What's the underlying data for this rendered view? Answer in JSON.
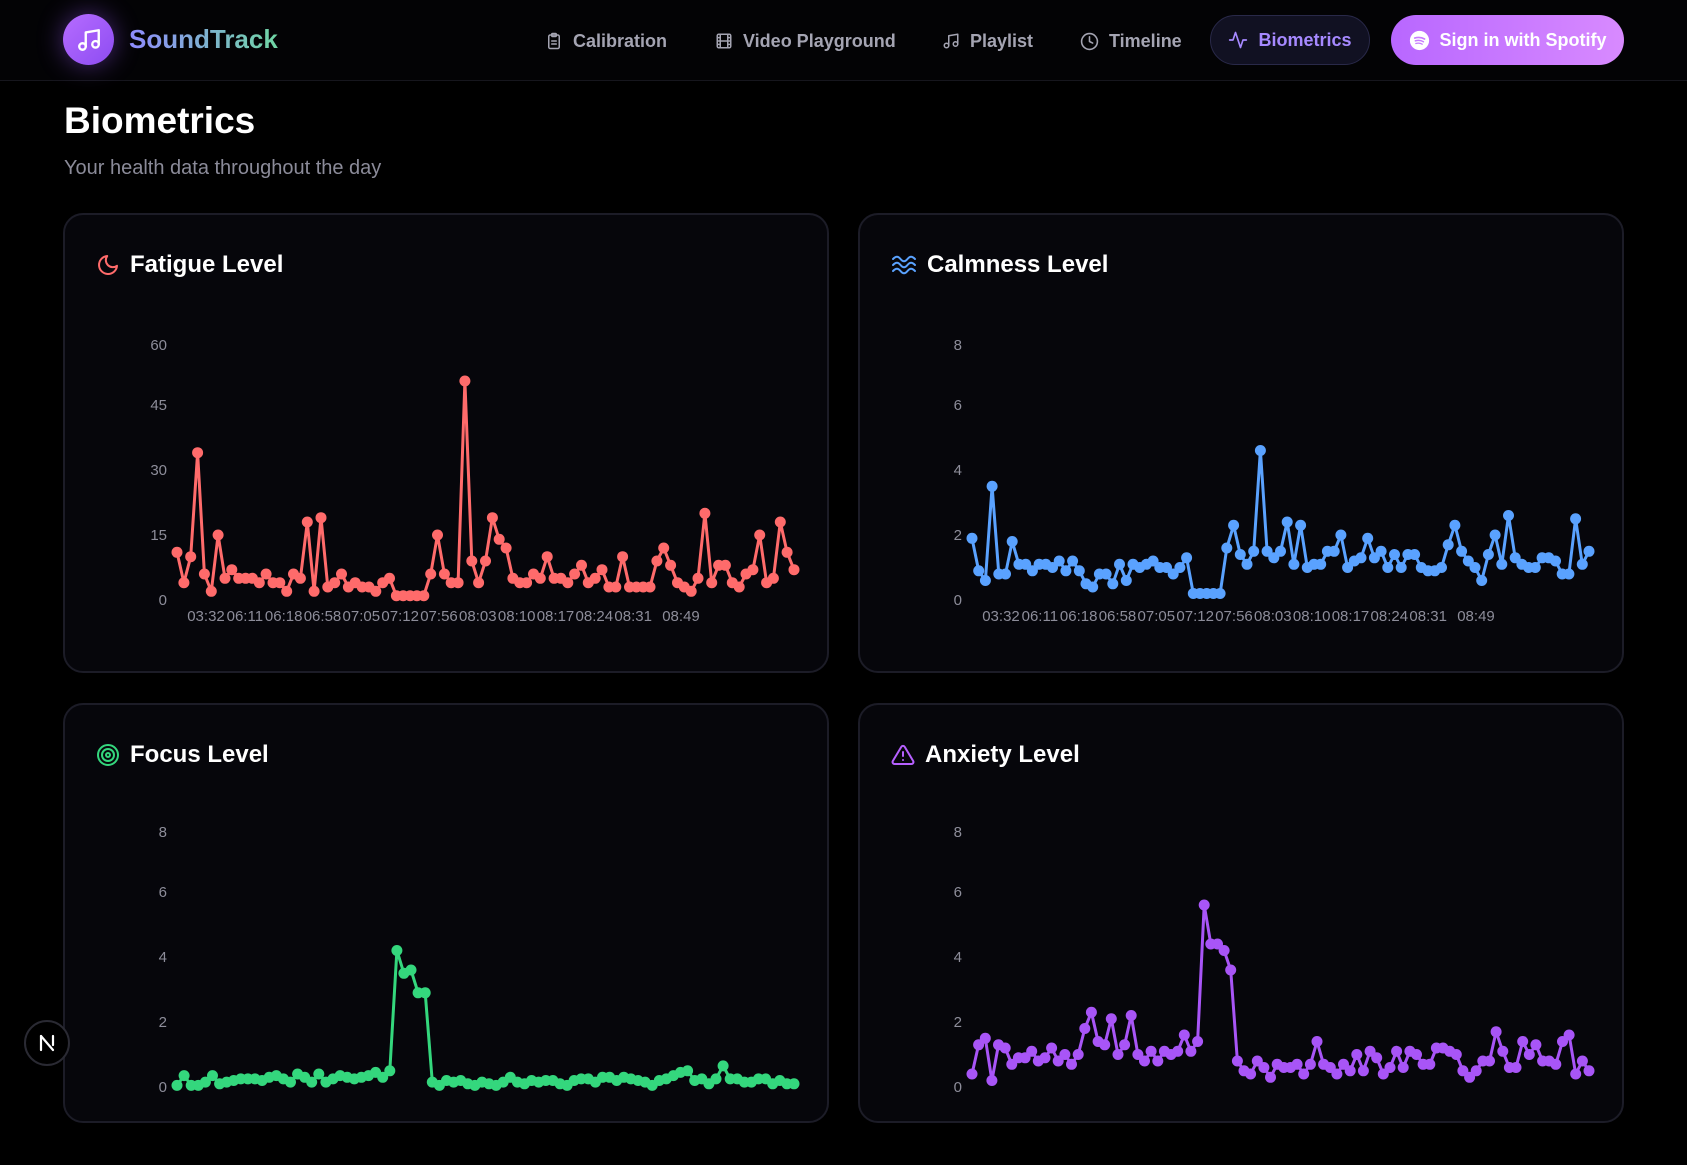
{
  "app": {
    "name": "SoundTrack",
    "logo_icon": "music-note-icon"
  },
  "nav": {
    "items": [
      {
        "label": "Calibration",
        "icon": "clipboard-icon"
      },
      {
        "label": "Video Playground",
        "icon": "film-icon"
      },
      {
        "label": "Playlist",
        "icon": "music-icon"
      },
      {
        "label": "Timeline",
        "icon": "clock-icon"
      }
    ],
    "active": {
      "label": "Biometrics",
      "icon": "activity-icon"
    },
    "signin_label": "Sign in with Spotify"
  },
  "page": {
    "title": "Biometrics",
    "subtitle": "Your health data throughout the day"
  },
  "colors": {
    "fatigue": "#ff6b6b",
    "calmness": "#5aa2ff",
    "focus": "#34d77d",
    "anxiety": "#a855f7"
  },
  "chart_data": [
    {
      "type": "line",
      "title": "Fatigue Level",
      "icon": "moon-icon",
      "ylim": [
        0,
        60
      ],
      "yticks": [
        "60",
        "45",
        "30",
        "15",
        "0"
      ],
      "xticks": [
        "03:32",
        "06:11",
        "06:18",
        "06:58",
        "07:05",
        "07:12",
        "07:56",
        "08:03",
        "08:10",
        "08:17",
        "08:24",
        "08:31",
        "08:49"
      ],
      "values": [
        11,
        4,
        10,
        34,
        6,
        2,
        15,
        5,
        7,
        5,
        5,
        5,
        4,
        6,
        4,
        4,
        2,
        6,
        5,
        18,
        2,
        19,
        3,
        4,
        6,
        3,
        4,
        3,
        3,
        2,
        4,
        5,
        1,
        1,
        1,
        1,
        1,
        6,
        15,
        6,
        4,
        4,
        51,
        9,
        4,
        9,
        19,
        14,
        12,
        5,
        4,
        4,
        6,
        5,
        10,
        5,
        5,
        4,
        6,
        8,
        4,
        5,
        7,
        3,
        3,
        10,
        3,
        3,
        3,
        3,
        9,
        12,
        8,
        4,
        3,
        2,
        5,
        20,
        4,
        8,
        8,
        4,
        3,
        6,
        7,
        15,
        4,
        5,
        18,
        11,
        7
      ]
    },
    {
      "type": "line",
      "title": "Calmness Level",
      "icon": "waves-icon",
      "ylim": [
        0,
        8
      ],
      "yticks": [
        "8",
        "6",
        "4",
        "2",
        "0"
      ],
      "xticks": [
        "03:32",
        "06:11",
        "06:18",
        "06:58",
        "07:05",
        "07:12",
        "07:56",
        "08:03",
        "08:10",
        "08:17",
        "08:24",
        "08:31",
        "08:49"
      ],
      "values": [
        1.9,
        0.9,
        0.6,
        3.5,
        0.8,
        0.8,
        1.8,
        1.1,
        1.1,
        0.9,
        1.1,
        1.1,
        1.0,
        1.2,
        0.9,
        1.2,
        0.9,
        0.5,
        0.4,
        0.8,
        0.8,
        0.5,
        1.1,
        0.6,
        1.1,
        1.0,
        1.1,
        1.2,
        1.0,
        1.0,
        0.8,
        1.0,
        1.3,
        0.2,
        0.2,
        0.2,
        0.2,
        0.2,
        1.6,
        2.3,
        1.4,
        1.1,
        1.5,
        4.6,
        1.5,
        1.3,
        1.5,
        2.4,
        1.1,
        2.3,
        1.0,
        1.1,
        1.1,
        1.5,
        1.5,
        2.0,
        1.0,
        1.2,
        1.3,
        1.9,
        1.3,
        1.5,
        1.0,
        1.4,
        1.0,
        1.4,
        1.4,
        1.0,
        0.9,
        0.9,
        1.0,
        1.7,
        2.3,
        1.5,
        1.2,
        1.0,
        0.6,
        1.4,
        2.0,
        1.1,
        2.6,
        1.3,
        1.1,
        1.0,
        1.0,
        1.3,
        1.3,
        1.2,
        0.8,
        0.8,
        2.5,
        1.1,
        1.5
      ]
    },
    {
      "type": "line",
      "title": "Focus Level",
      "icon": "target-icon",
      "ylim": [
        0,
        8
      ],
      "yticks": [
        "8",
        "6",
        "4",
        "2",
        "0"
      ],
      "values": [
        0.05,
        0.35,
        0.05,
        0.05,
        0.15,
        0.35,
        0.1,
        0.15,
        0.2,
        0.25,
        0.25,
        0.25,
        0.2,
        0.3,
        0.35,
        0.25,
        0.15,
        0.4,
        0.3,
        0.15,
        0.4,
        0.15,
        0.25,
        0.35,
        0.3,
        0.25,
        0.3,
        0.35,
        0.45,
        0.3,
        0.5,
        4.2,
        3.5,
        3.6,
        2.9,
        2.9,
        0.15,
        0.05,
        0.2,
        0.15,
        0.2,
        0.1,
        0.05,
        0.15,
        0.1,
        0.05,
        0.15,
        0.3,
        0.15,
        0.1,
        0.2,
        0.15,
        0.2,
        0.2,
        0.1,
        0.05,
        0.2,
        0.25,
        0.25,
        0.15,
        0.3,
        0.3,
        0.2,
        0.3,
        0.25,
        0.2,
        0.15,
        0.05,
        0.2,
        0.25,
        0.35,
        0.45,
        0.5,
        0.2,
        0.25,
        0.1,
        0.25,
        0.65,
        0.25,
        0.25,
        0.15,
        0.15,
        0.25,
        0.25,
        0.1,
        0.2,
        0.1,
        0.1
      ]
    },
    {
      "type": "line",
      "title": "Anxiety Level",
      "icon": "alert-triangle-icon",
      "ylim": [
        0,
        8
      ],
      "yticks": [
        "8",
        "6",
        "4",
        "2",
        "0"
      ],
      "values": [
        0.4,
        1.3,
        1.5,
        0.2,
        1.3,
        1.2,
        0.7,
        0.9,
        0.9,
        1.1,
        0.8,
        0.9,
        1.2,
        0.8,
        1.0,
        0.7,
        1.0,
        1.8,
        2.3,
        1.4,
        1.3,
        2.1,
        1.0,
        1.3,
        2.2,
        1.0,
        0.8,
        1.1,
        0.8,
        1.1,
        1.0,
        1.1,
        1.6,
        1.1,
        1.4,
        5.6,
        4.4,
        4.4,
        4.2,
        3.6,
        0.8,
        0.5,
        0.4,
        0.8,
        0.6,
        0.3,
        0.7,
        0.6,
        0.6,
        0.7,
        0.4,
        0.7,
        1.4,
        0.7,
        0.6,
        0.4,
        0.7,
        0.5,
        1.0,
        0.5,
        1.1,
        0.9,
        0.4,
        0.6,
        1.1,
        0.6,
        1.1,
        1.0,
        0.7,
        0.7,
        1.2,
        1.2,
        1.1,
        1.0,
        0.5,
        0.3,
        0.5,
        0.8,
        0.8,
        1.7,
        1.1,
        0.6,
        0.6,
        1.4,
        1.0,
        1.3,
        0.8,
        0.8,
        0.7,
        1.4,
        1.6,
        0.4,
        0.8,
        0.5
      ]
    }
  ]
}
